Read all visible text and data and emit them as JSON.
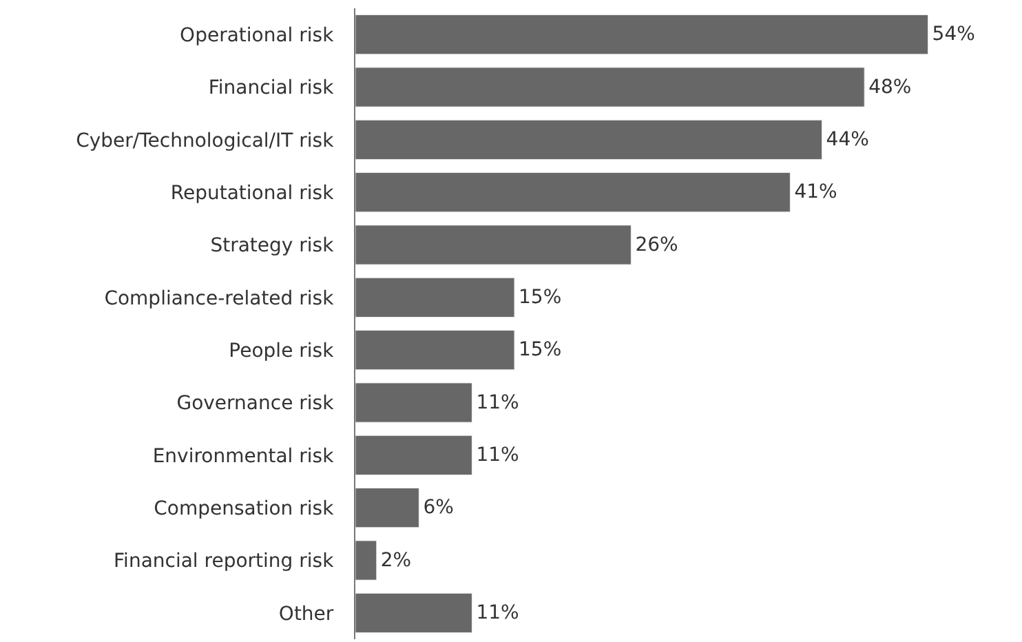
{
  "chart_data": {
    "type": "bar",
    "orientation": "horizontal",
    "categories": [
      "Operational risk",
      "Financial risk",
      "Cyber/Technological/IT risk",
      "Reputational risk",
      "Strategy risk",
      "Compliance-related risk",
      "People risk",
      "Governance risk",
      "Environmental risk",
      "Compensation risk",
      "Financial reporting risk",
      "Other"
    ],
    "values": [
      54,
      48,
      44,
      41,
      26,
      15,
      15,
      11,
      11,
      6,
      2,
      11
    ],
    "value_labels": [
      "54%",
      "48%",
      "44%",
      "41%",
      "26%",
      "15%",
      "15%",
      "11%",
      "11%",
      "6%",
      "2%",
      "11%"
    ],
    "color": "#676767",
    "tick_labels": "y",
    "legend": false
  }
}
